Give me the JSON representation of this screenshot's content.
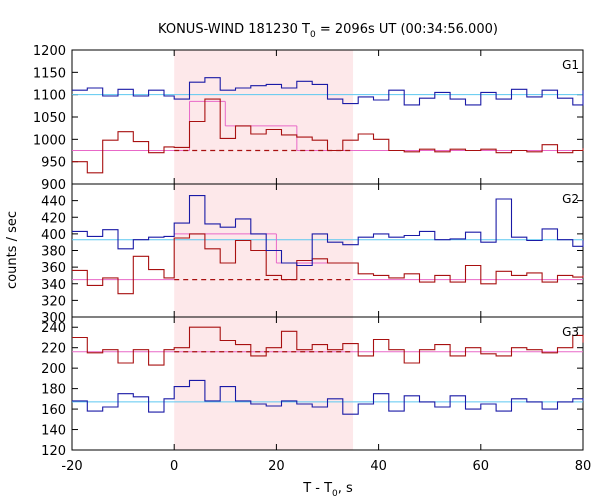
{
  "chart_data": {
    "type": "line",
    "title": {
      "main": "KONUS-WIND 181230 T",
      "sub": "0",
      "rest": " = 2096s UT (00:34:56.000)"
    },
    "xlabel": {
      "main": "T - T",
      "sub": "0",
      "rest": ", s"
    },
    "ylabel": "counts / sec",
    "xlim": [
      -20,
      80
    ],
    "x_ticks": [
      "-20",
      "0",
      "20",
      "40",
      "60",
      "80"
    ],
    "shaded_interval": {
      "x": [
        0,
        35
      ],
      "color": "#fde8ea"
    },
    "colors": {
      "blue": "#1a1aa6",
      "red": "#a81010",
      "light_blue": "#5cc8f0",
      "pink": "#e868c8"
    },
    "panels": [
      {
        "name": "G1",
        "ylim": [
          900,
          1200
        ],
        "y_ticks": [
          "900",
          "950",
          "1000",
          "1050",
          "1100",
          "1150",
          "1200"
        ],
        "blue": {
          "x": [
            -20,
            -17,
            -14,
            -11,
            -8,
            -5,
            -2,
            0,
            3,
            6,
            9,
            12,
            15,
            18,
            21,
            24,
            27,
            30,
            33,
            36,
            39,
            42,
            45,
            48,
            51,
            54,
            57,
            60,
            63,
            66,
            69,
            72,
            75,
            78,
            80
          ],
          "y": [
            1110,
            1115,
            1097,
            1112,
            1097,
            1110,
            1097,
            1090,
            1128,
            1138,
            1110,
            1115,
            1120,
            1123,
            1115,
            1130,
            1123,
            1090,
            1080,
            1095,
            1088,
            1110,
            1077,
            1092,
            1105,
            1090,
            1077,
            1105,
            1090,
            1112,
            1095,
            1110,
            1092,
            1077,
            1110
          ]
        },
        "red": {
          "x": [
            -20,
            -17,
            -14,
            -11,
            -8,
            -5,
            -2,
            0,
            3,
            6,
            9,
            12,
            15,
            18,
            21,
            24,
            27,
            30,
            33,
            36,
            39,
            42,
            45,
            48,
            51,
            54,
            57,
            60,
            63,
            66,
            69,
            72,
            75,
            78,
            80
          ],
          "y": [
            950,
            925,
            998,
            1017,
            995,
            970,
            983,
            982,
            1040,
            1090,
            1002,
            1030,
            1012,
            1022,
            1010,
            1005,
            998,
            975,
            998,
            1012,
            1000,
            975,
            972,
            978,
            972,
            978,
            975,
            978,
            970,
            975,
            972,
            988,
            970,
            975,
            980
          ]
        },
        "blue_bg": 1100,
        "red_bg": 975,
        "red_fit": [
          {
            "x": [
              0,
              3
            ],
            "y": 975
          },
          {
            "x": [
              3,
              10
            ],
            "y": 1085
          },
          {
            "x": [
              10,
              24
            ],
            "y": 1030
          },
          {
            "x": [
              24,
              35
            ],
            "y": 975
          }
        ]
      },
      {
        "name": "G2",
        "ylim": [
          300,
          460
        ],
        "y_ticks": [
          "300",
          "320",
          "340",
          "360",
          "380",
          "400",
          "420",
          "440"
        ],
        "blue": {
          "x": [
            -20,
            -17,
            -14,
            -11,
            -8,
            -5,
            -2,
            0,
            3,
            6,
            9,
            12,
            15,
            18,
            21,
            24,
            27,
            30,
            33,
            36,
            39,
            42,
            45,
            48,
            51,
            54,
            57,
            60,
            63,
            66,
            69,
            72,
            75,
            78,
            80
          ],
          "y": [
            403,
            397,
            405,
            382,
            393,
            396,
            397,
            413,
            446,
            412,
            408,
            418,
            400,
            380,
            365,
            362,
            400,
            390,
            387,
            396,
            400,
            396,
            398,
            403,
            393,
            394,
            402,
            390,
            442,
            396,
            392,
            406,
            393,
            385,
            392
          ]
        },
        "red": {
          "x": [
            -20,
            -17,
            -14,
            -11,
            -8,
            -5,
            -2,
            0,
            3,
            6,
            9,
            12,
            15,
            18,
            21,
            24,
            27,
            30,
            33,
            36,
            39,
            42,
            45,
            48,
            51,
            54,
            57,
            60,
            63,
            66,
            69,
            72,
            75,
            78,
            80
          ],
          "y": [
            356,
            338,
            347,
            328,
            373,
            357,
            347,
            395,
            400,
            382,
            365,
            392,
            380,
            350,
            345,
            368,
            370,
            365,
            365,
            352,
            350,
            347,
            352,
            342,
            350,
            342,
            362,
            340,
            355,
            350,
            353,
            342,
            350,
            348,
            350
          ]
        },
        "blue_bg": 393,
        "red_bg": 345,
        "red_fit": [
          {
            "x": [
              0,
              20
            ],
            "y": 400
          },
          {
            "x": [
              20,
              35
            ],
            "y": 365
          }
        ]
      },
      {
        "name": "G3",
        "ylim": [
          120,
          250
        ],
        "y_ticks": [
          "120",
          "140",
          "160",
          "180",
          "200",
          "220",
          "240"
        ],
        "blue": {
          "x": [
            -20,
            -17,
            -14,
            -11,
            -8,
            -5,
            -2,
            0,
            3,
            6,
            9,
            12,
            15,
            18,
            21,
            24,
            27,
            30,
            33,
            36,
            39,
            42,
            45,
            48,
            51,
            54,
            57,
            60,
            63,
            66,
            69,
            72,
            75,
            78,
            80
          ],
          "y": [
            168,
            158,
            162,
            175,
            172,
            157,
            170,
            182,
            188,
            168,
            182,
            168,
            165,
            163,
            168,
            165,
            162,
            170,
            155,
            165,
            175,
            158,
            173,
            167,
            162,
            173,
            160,
            165,
            158,
            170,
            167,
            160,
            167,
            170,
            168
          ]
        },
        "red": {
          "x": [
            -20,
            -17,
            -14,
            -11,
            -8,
            -5,
            -2,
            0,
            3,
            6,
            9,
            12,
            15,
            18,
            21,
            24,
            27,
            30,
            33,
            36,
            39,
            42,
            45,
            48,
            51,
            54,
            57,
            60,
            63,
            66,
            69,
            72,
            75,
            78,
            80
          ],
          "y": [
            230,
            215,
            218,
            205,
            218,
            203,
            218,
            220,
            240,
            240,
            227,
            223,
            212,
            220,
            236,
            218,
            223,
            218,
            224,
            212,
            228,
            218,
            205,
            218,
            223,
            212,
            220,
            214,
            212,
            220,
            218,
            215,
            220,
            232,
            225
          ]
        },
        "blue_bg": 167,
        "red_bg": 216,
        "red_fit": [
          {
            "x": [
              0,
              35
            ],
            "y": 216
          }
        ]
      }
    ]
  }
}
